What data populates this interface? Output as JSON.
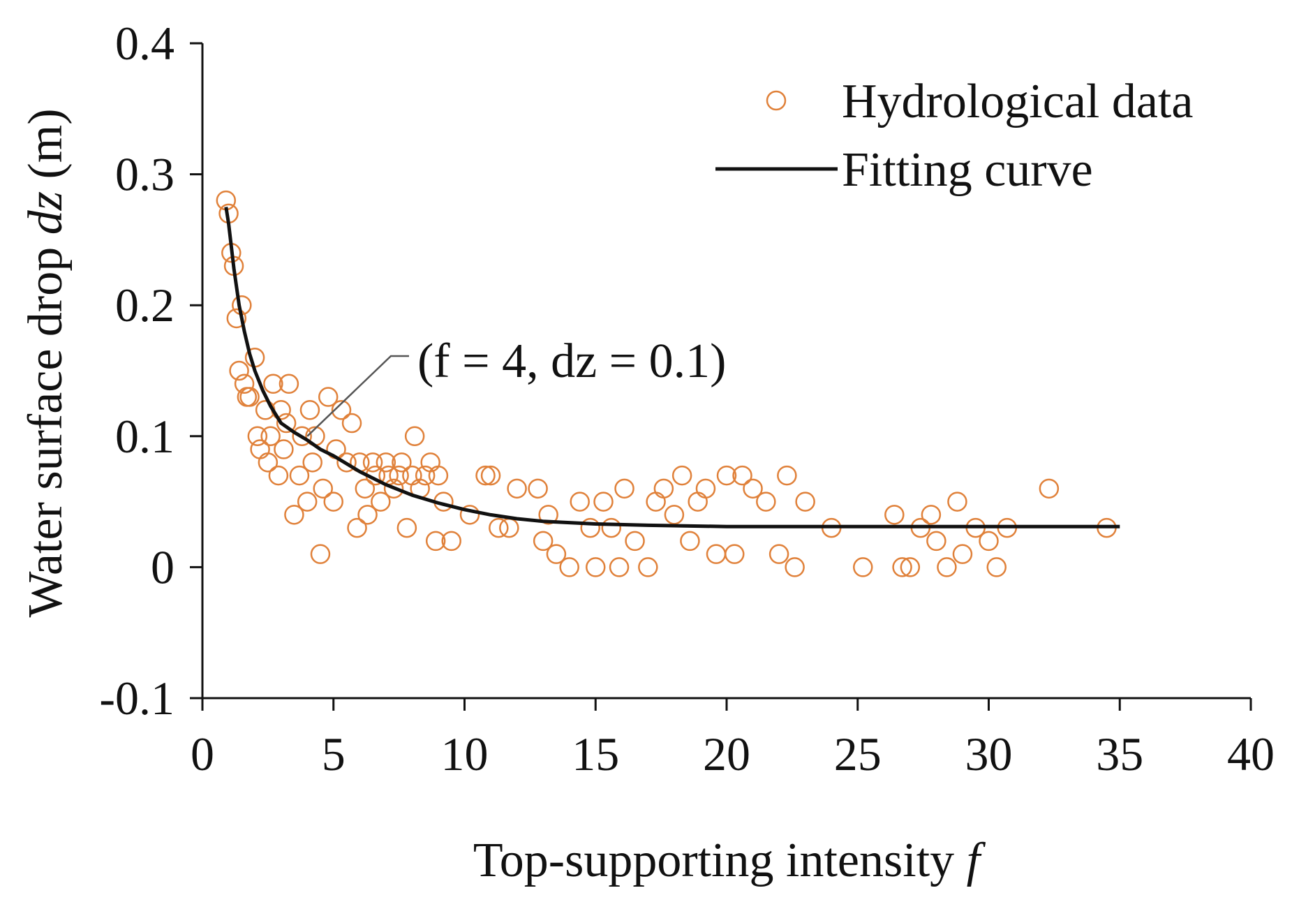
{
  "chart_data": {
    "type": "scatter",
    "title": "",
    "xlabel": "Top-supporting intensity",
    "xlabel_var": "f",
    "ylabel": "Water surface drop",
    "ylabel_var": "dz",
    "ylabel_unit": "(m)",
    "xlim": [
      0,
      40
    ],
    "ylim": [
      -0.1,
      0.4
    ],
    "xticks": [
      0,
      5,
      10,
      15,
      20,
      25,
      30,
      35,
      40
    ],
    "xtick_labels": [
      "0",
      "5",
      "10",
      "15",
      "20",
      "25",
      "30",
      "35",
      "40"
    ],
    "yticks": [
      -0.1,
      0,
      0.1,
      0.2,
      0.3,
      0.4
    ],
    "ytick_labels": [
      "-0.1",
      "0",
      "0.1",
      "0.2",
      "0.3",
      "0.4"
    ],
    "grid": false,
    "legend_position": "top-right",
    "colors": {
      "marker": "#e0813a",
      "curve": "#111111",
      "axis": "#111111"
    },
    "series": [
      {
        "name": "Hydrological data",
        "kind": "scatter",
        "marker": "open-circle",
        "x": [
          0.9,
          1.0,
          1.1,
          1.2,
          1.3,
          1.4,
          1.5,
          1.6,
          1.7,
          1.8,
          2.0,
          2.1,
          2.2,
          2.4,
          2.5,
          2.6,
          2.7,
          2.9,
          3.0,
          3.1,
          3.2,
          3.3,
          3.5,
          3.7,
          3.8,
          4.0,
          4.1,
          4.2,
          4.3,
          4.5,
          4.6,
          4.8,
          5.0,
          5.1,
          5.3,
          5.5,
          5.7,
          5.9,
          6.0,
          6.2,
          6.3,
          6.5,
          6.6,
          6.8,
          7.0,
          7.1,
          7.3,
          7.5,
          7.6,
          7.8,
          8.0,
          8.1,
          8.3,
          8.5,
          8.7,
          8.9,
          9.0,
          9.2,
          9.5,
          10.2,
          10.8,
          11.0,
          11.3,
          11.7,
          12.0,
          12.8,
          13.0,
          13.2,
          13.5,
          14.0,
          14.4,
          14.8,
          15.0,
          15.3,
          15.6,
          15.9,
          16.1,
          16.5,
          17.0,
          17.3,
          17.6,
          18.0,
          18.3,
          18.6,
          18.9,
          19.2,
          19.6,
          20.0,
          20.3,
          20.6,
          21.0,
          21.5,
          22.0,
          22.3,
          22.6,
          23.0,
          24.0,
          25.2,
          26.4,
          26.7,
          27.0,
          27.4,
          27.8,
          28.0,
          28.4,
          28.8,
          29.0,
          29.5,
          30.0,
          30.3,
          30.7,
          32.3,
          34.5
        ],
        "y": [
          0.28,
          0.27,
          0.24,
          0.23,
          0.19,
          0.15,
          0.2,
          0.14,
          0.13,
          0.13,
          0.16,
          0.1,
          0.09,
          0.12,
          0.08,
          0.1,
          0.14,
          0.07,
          0.12,
          0.09,
          0.11,
          0.14,
          0.04,
          0.07,
          0.1,
          0.05,
          0.12,
          0.08,
          0.1,
          0.01,
          0.06,
          0.13,
          0.05,
          0.09,
          0.12,
          0.08,
          0.11,
          0.03,
          0.08,
          0.06,
          0.04,
          0.08,
          0.07,
          0.05,
          0.08,
          0.07,
          0.06,
          0.07,
          0.08,
          0.03,
          0.07,
          0.1,
          0.06,
          0.07,
          0.08,
          0.02,
          0.07,
          0.05,
          0.02,
          0.04,
          0.07,
          0.07,
          0.03,
          0.03,
          0.06,
          0.06,
          0.02,
          0.04,
          0.01,
          0.0,
          0.05,
          0.03,
          0.0,
          0.05,
          0.03,
          0.0,
          0.06,
          0.02,
          0.0,
          0.05,
          0.06,
          0.04,
          0.07,
          0.02,
          0.05,
          0.06,
          0.01,
          0.07,
          0.01,
          0.07,
          0.06,
          0.05,
          0.01,
          0.07,
          0.0,
          0.05,
          0.03,
          0.0,
          0.04,
          0.0,
          0.0,
          0.03,
          0.04,
          0.02,
          0.0,
          0.05,
          0.01,
          0.03,
          0.02,
          0.0,
          0.03,
          0.06,
          0.03
        ]
      },
      {
        "name": "Fitting curve",
        "kind": "line",
        "x": [
          0.9,
          1.0,
          1.2,
          1.4,
          1.6,
          1.8,
          2.0,
          2.3,
          2.6,
          3.0,
          3.5,
          4.0,
          4.5,
          5.0,
          6.0,
          7.0,
          8.0,
          9.0,
          10.0,
          11.0,
          12.0,
          13.0,
          14.0,
          15.0,
          17.0,
          20.0,
          25.0,
          30.0,
          35.0
        ],
        "y": [
          0.275,
          0.262,
          0.228,
          0.2,
          0.18,
          0.163,
          0.15,
          0.135,
          0.123,
          0.11,
          0.103,
          0.097,
          0.09,
          0.085,
          0.073,
          0.063,
          0.055,
          0.049,
          0.044,
          0.04,
          0.037,
          0.035,
          0.034,
          0.033,
          0.032,
          0.031,
          0.031,
          0.031,
          0.031
        ]
      }
    ],
    "annotations": [
      {
        "text": "(f = 4, dz = 0.1)",
        "x": 4,
        "y": 0.1
      }
    ]
  }
}
